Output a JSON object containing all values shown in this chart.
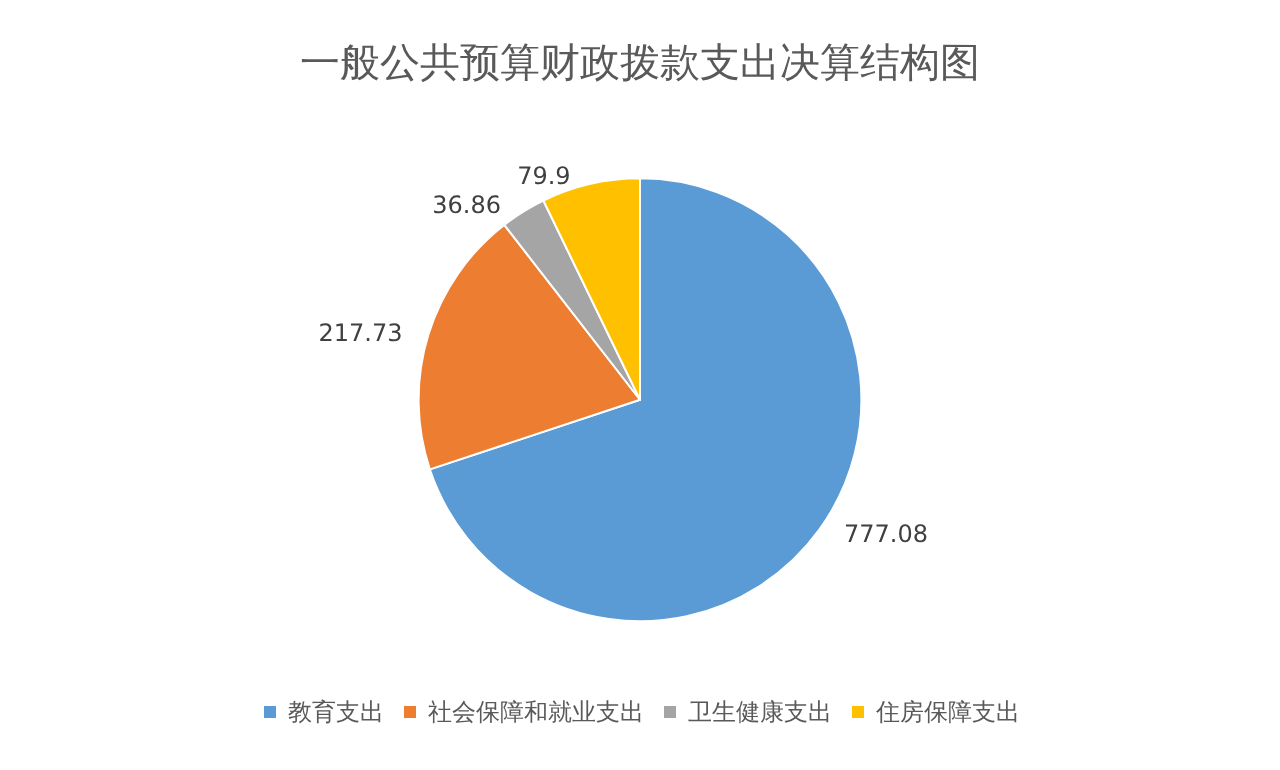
{
  "chart_data": {
    "type": "pie",
    "title": "一般公共预算财政拨款支出决算结构图",
    "categories": [
      "教育支出",
      "社会保障和就业支出",
      "卫生健康支出",
      "住房保障支出"
    ],
    "values": [
      777.08,
      217.73,
      36.86,
      79.9
    ],
    "colors": [
      "#5b9bd5",
      "#ed7d31",
      "#a5a5a5",
      "#ffc000"
    ],
    "data_labels": true,
    "legend": "bottom"
  }
}
